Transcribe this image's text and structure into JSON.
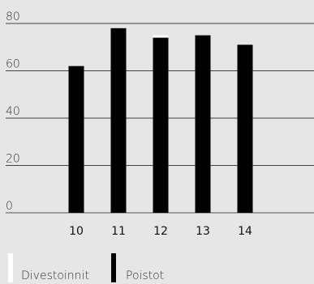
{
  "chart_data": {
    "type": "bar",
    "categories": [
      "10",
      "11",
      "12",
      "13",
      "14"
    ],
    "series": [
      {
        "name": "Divestoinnit",
        "color": "#ffffff",
        "values": [
          0,
          0,
          1,
          0,
          0
        ]
      },
      {
        "name": "Poistot",
        "color": "#000000",
        "values": [
          62,
          78,
          74,
          75,
          71
        ]
      }
    ],
    "stacked": true,
    "ylim": [
      0,
      80
    ],
    "yticks": [
      "0",
      "20",
      "40",
      "60",
      "80"
    ],
    "grid": true,
    "legend_position": "bottom-left",
    "background": "#e6e6e6"
  }
}
